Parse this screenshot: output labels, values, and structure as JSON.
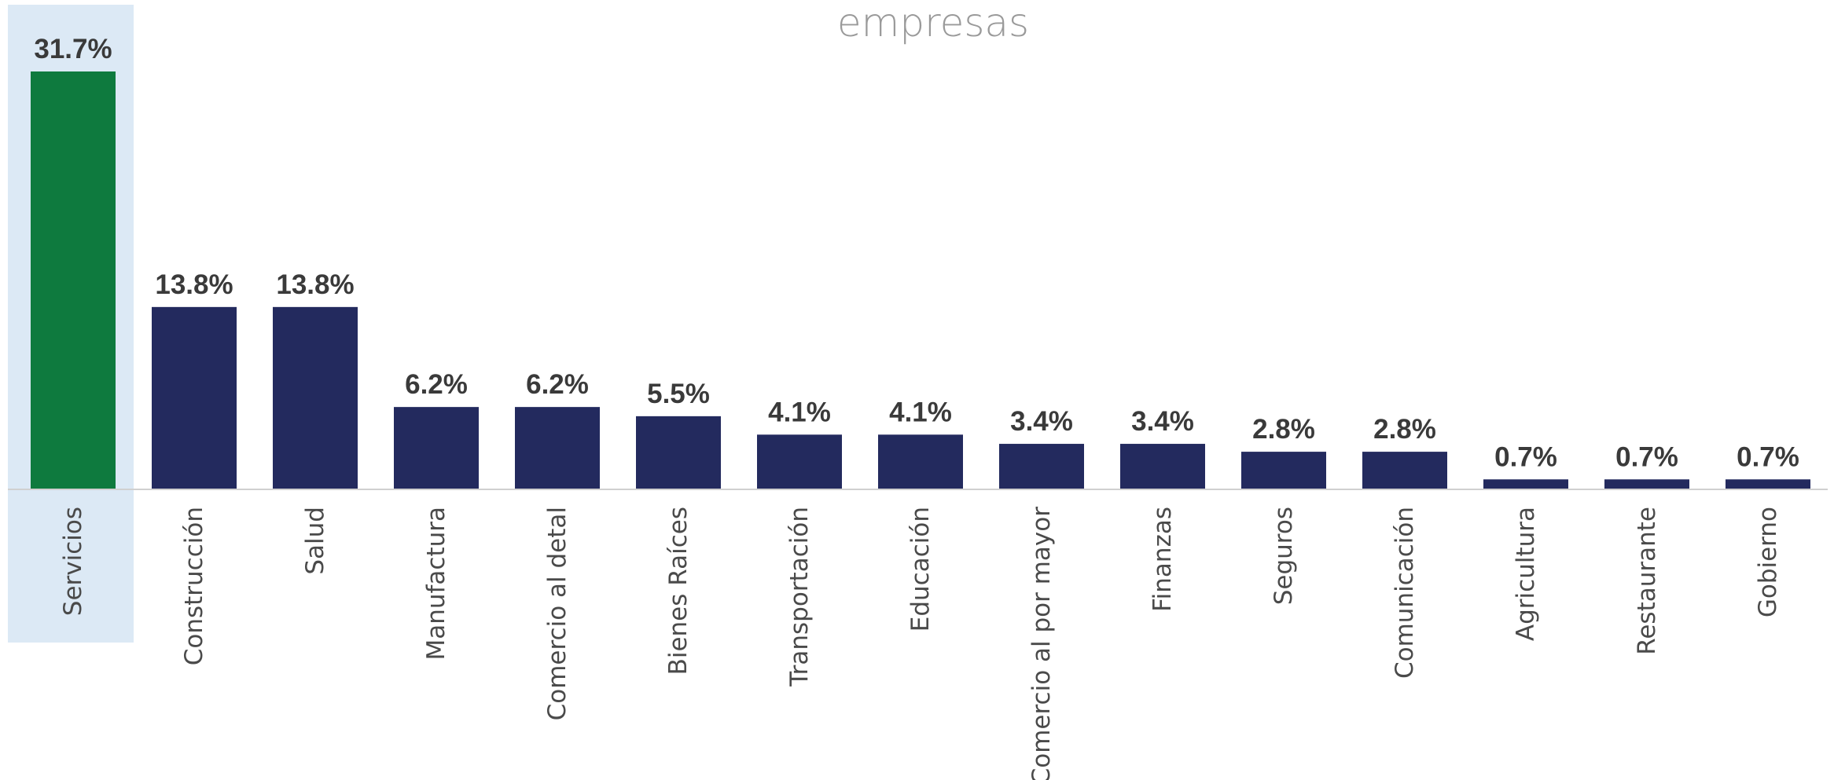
{
  "chart_data": {
    "type": "bar",
    "title": "empresas",
    "categories": [
      "Servicios",
      "Construcción",
      "Salud",
      "Manufactura",
      "Comercio al detal",
      "Bienes Raíces",
      "Transportación",
      "Educación",
      "Comercio al por mayor",
      "Finanzas",
      "Seguros",
      "Comunicación",
      "Agricultura",
      "Restaurante",
      "Gobierno"
    ],
    "values": [
      31.7,
      13.8,
      13.8,
      6.2,
      6.2,
      5.5,
      4.1,
      4.1,
      3.4,
      3.4,
      2.8,
      2.8,
      0.7,
      0.7,
      0.7
    ],
    "value_labels": [
      "31.7%",
      "13.8%",
      "13.8%",
      "6.2%",
      "6.2%",
      "5.5%",
      "4.1%",
      "4.1%",
      "3.4%",
      "3.4%",
      "2.8%",
      "2.8%",
      "0.7%",
      "0.7%",
      "0.7%"
    ],
    "highlighted_category": "Servicios",
    "colors": {
      "bar": "#232a5e",
      "highlight_bar": "#0e7a3e",
      "highlight_background": "#dce9f5",
      "value_text": "#3a3a3a",
      "category_text": "#4a4a4a",
      "title_text": "#9a9a9a",
      "axis": "#d0d0d0"
    },
    "ylim": [
      0,
      31.7
    ],
    "grid": false,
    "legend": "none"
  }
}
